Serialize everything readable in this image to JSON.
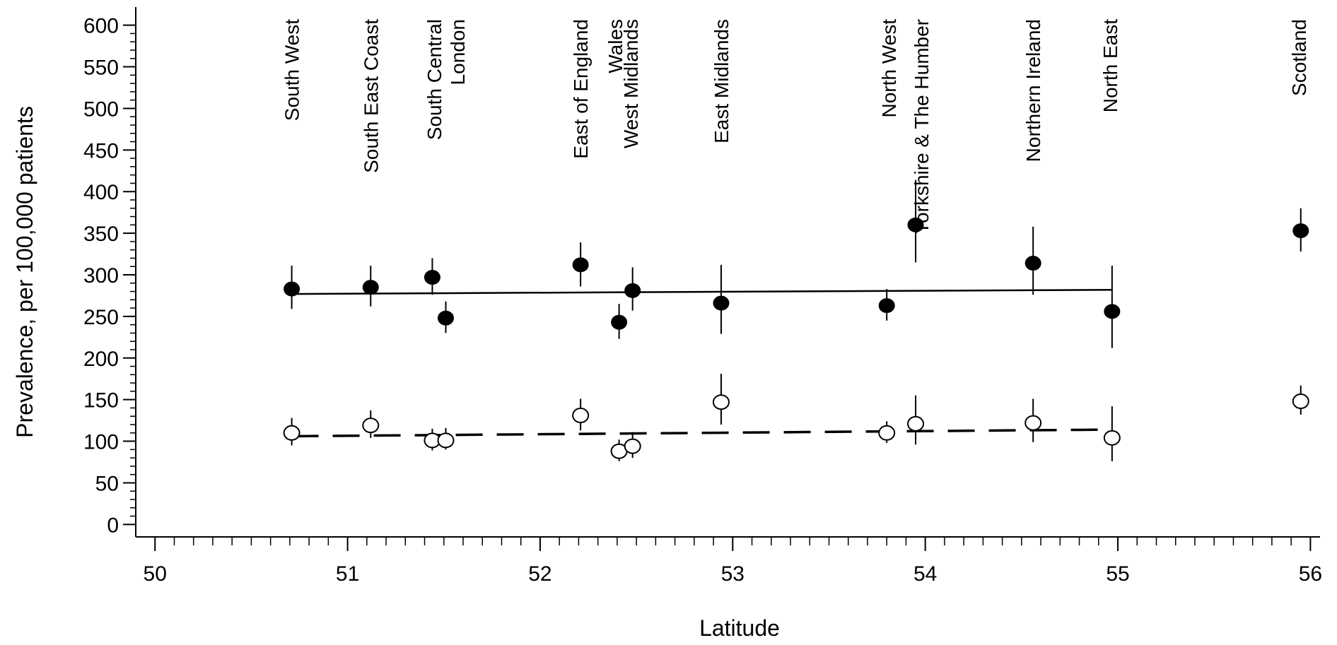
{
  "chart_data": {
    "type": "scatter",
    "title": "",
    "xlabel": "Latitude",
    "ylabel": "Prevalence, per 100,000 patients",
    "xlim": [
      49.9,
      56.05
    ],
    "ylim": [
      -15,
      615
    ],
    "xticks": [
      50,
      51,
      52,
      53,
      54,
      55,
      56
    ],
    "yticks": [
      0,
      50,
      100,
      150,
      200,
      250,
      300,
      350,
      400,
      450,
      500,
      550,
      600
    ],
    "x_minor_step": 0.1,
    "y_minor_step": 10,
    "grid": false,
    "legend": "none",
    "regions": [
      {
        "name": "South West",
        "lat": 50.71
      },
      {
        "name": "South East Coast",
        "lat": 51.12
      },
      {
        "name": "South Central",
        "lat": 51.45
      },
      {
        "name": "London",
        "lat": 51.57
      },
      {
        "name": "East of England",
        "lat": 52.21
      },
      {
        "name": "Wales",
        "lat": 52.39
      },
      {
        "name": "West Midlands",
        "lat": 52.47
      },
      {
        "name": "East Midlands",
        "lat": 52.94
      },
      {
        "name": "North West",
        "lat": 53.81
      },
      {
        "name": "Yorkshire & The Humber",
        "lat": 53.98
      },
      {
        "name": "Northern Ireland",
        "lat": 54.56
      },
      {
        "name": "North East",
        "lat": 54.96
      },
      {
        "name": "Scotland",
        "lat": 55.94
      }
    ],
    "series": [
      {
        "marker": "filled-circle",
        "fit_line": "solid",
        "points": [
          {
            "x": 50.71,
            "y": 283,
            "lo": 259,
            "hi": 311
          },
          {
            "x": 51.12,
            "y": 285,
            "lo": 262,
            "hi": 311
          },
          {
            "x": 51.44,
            "y": 297,
            "lo": 276,
            "hi": 320
          },
          {
            "x": 51.51,
            "y": 248,
            "lo": 230,
            "hi": 268
          },
          {
            "x": 52.21,
            "y": 312,
            "lo": 286,
            "hi": 339
          },
          {
            "x": 52.41,
            "y": 243,
            "lo": 223,
            "hi": 265
          },
          {
            "x": 52.48,
            "y": 281,
            "lo": 257,
            "hi": 309
          },
          {
            "x": 52.94,
            "y": 266,
            "lo": 229,
            "hi": 312
          },
          {
            "x": 53.8,
            "y": 263,
            "lo": 245,
            "hi": 283
          },
          {
            "x": 53.95,
            "y": 360,
            "lo": 315,
            "hi": 414
          },
          {
            "x": 54.56,
            "y": 314,
            "lo": 276,
            "hi": 358
          },
          {
            "x": 54.97,
            "y": 256,
            "lo": 212,
            "hi": 311
          },
          {
            "x": 55.95,
            "y": 353,
            "lo": 328,
            "hi": 380
          }
        ],
        "fit": [
          {
            "x": 50.71,
            "y": 277
          },
          {
            "x": 54.97,
            "y": 282
          }
        ]
      },
      {
        "marker": "open-circle",
        "fit_line": "dashed",
        "points": [
          {
            "x": 50.71,
            "y": 110,
            "lo": 95,
            "hi": 128
          },
          {
            "x": 51.12,
            "y": 119,
            "lo": 104,
            "hi": 137
          },
          {
            "x": 51.44,
            "y": 101,
            "lo": 89,
            "hi": 115
          },
          {
            "x": 51.51,
            "y": 101,
            "lo": 90,
            "hi": 116
          },
          {
            "x": 52.21,
            "y": 131,
            "lo": 113,
            "hi": 151
          },
          {
            "x": 52.41,
            "y": 88,
            "lo": 76,
            "hi": 102
          },
          {
            "x": 52.48,
            "y": 94,
            "lo": 80,
            "hi": 111
          },
          {
            "x": 52.94,
            "y": 147,
            "lo": 120,
            "hi": 181
          },
          {
            "x": 53.8,
            "y": 110,
            "lo": 98,
            "hi": 124
          },
          {
            "x": 53.95,
            "y": 121,
            "lo": 96,
            "hi": 155
          },
          {
            "x": 54.56,
            "y": 122,
            "lo": 99,
            "hi": 151
          },
          {
            "x": 54.97,
            "y": 104,
            "lo": 76,
            "hi": 142
          },
          {
            "x": 55.95,
            "y": 148,
            "lo": 132,
            "hi": 167
          }
        ],
        "fit": [
          {
            "x": 50.71,
            "y": 106
          },
          {
            "x": 54.97,
            "y": 114
          }
        ]
      }
    ]
  }
}
